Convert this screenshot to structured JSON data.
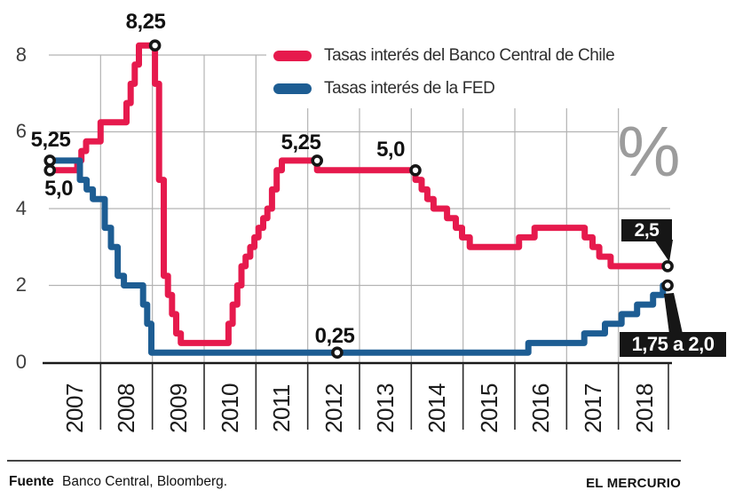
{
  "chart_data": {
    "type": "line",
    "step": true,
    "unit_symbol": "%",
    "x_range": [
      2007,
      2019
    ],
    "y_range": [
      0,
      8.6
    ],
    "grid": true,
    "legend_position": "top-center",
    "x_tick_labels": [
      "2007",
      "2008",
      "2009",
      "2010",
      "2011",
      "2012",
      "2013",
      "2014",
      "2015",
      "2016",
      "2017",
      "2018"
    ],
    "y_ticks": [
      0,
      2,
      4,
      6,
      8
    ],
    "y_tick_labels": [
      "8",
      "6",
      "4",
      "2",
      "0"
    ],
    "colors": {
      "chile": "#e61a4d",
      "fed": "#1d5d93",
      "badge_bg": "#161616",
      "grid": "#b3b3b3",
      "axis": "#1a1a1a",
      "percent": "#9c9c9c"
    },
    "series": [
      {
        "name": "Tasas interés del Banco Central de Chile",
        "color": "#e61a4d",
        "end_x": 2018.97,
        "points": [
          [
            2007.0,
            5.0
          ],
          [
            2007.55,
            5.25
          ],
          [
            2007.63,
            5.5
          ],
          [
            2007.72,
            5.75
          ],
          [
            2008.0,
            6.25
          ],
          [
            2008.5,
            6.75
          ],
          [
            2008.58,
            7.25
          ],
          [
            2008.66,
            7.75
          ],
          [
            2008.74,
            8.25
          ],
          [
            2009.05,
            7.25
          ],
          [
            2009.13,
            4.75
          ],
          [
            2009.22,
            2.25
          ],
          [
            2009.3,
            1.75
          ],
          [
            2009.38,
            1.25
          ],
          [
            2009.46,
            0.75
          ],
          [
            2009.55,
            0.5
          ],
          [
            2010.47,
            1.0
          ],
          [
            2010.55,
            1.5
          ],
          [
            2010.64,
            2.0
          ],
          [
            2010.72,
            2.5
          ],
          [
            2010.8,
            2.75
          ],
          [
            2010.89,
            3.0
          ],
          [
            2010.97,
            3.25
          ],
          [
            2011.05,
            3.5
          ],
          [
            2011.14,
            3.75
          ],
          [
            2011.22,
            4.0
          ],
          [
            2011.31,
            4.5
          ],
          [
            2011.4,
            5.0
          ],
          [
            2011.5,
            5.25
          ],
          [
            2012.18,
            5.0
          ],
          [
            2014.08,
            4.75
          ],
          [
            2014.2,
            4.5
          ],
          [
            2014.31,
            4.25
          ],
          [
            2014.43,
            4.0
          ],
          [
            2014.69,
            3.75
          ],
          [
            2014.86,
            3.5
          ],
          [
            2014.98,
            3.25
          ],
          [
            2015.13,
            3.0
          ],
          [
            2016.08,
            3.25
          ],
          [
            2016.38,
            3.5
          ],
          [
            2017.35,
            3.25
          ],
          [
            2017.5,
            3.0
          ],
          [
            2017.63,
            2.75
          ],
          [
            2017.85,
            2.5
          ]
        ]
      },
      {
        "name": "Tasas interés de la FED",
        "color": "#1d5d93",
        "end_x": 2018.97,
        "points": [
          [
            2007.0,
            5.25
          ],
          [
            2007.6,
            4.75
          ],
          [
            2007.73,
            4.5
          ],
          [
            2007.85,
            4.25
          ],
          [
            2008.08,
            3.5
          ],
          [
            2008.2,
            3.0
          ],
          [
            2008.33,
            2.25
          ],
          [
            2008.45,
            2.0
          ],
          [
            2008.82,
            1.5
          ],
          [
            2008.9,
            1.0
          ],
          [
            2008.98,
            0.25
          ],
          [
            2016.26,
            0.5
          ],
          [
            2017.34,
            0.75
          ],
          [
            2017.74,
            1.0
          ],
          [
            2018.06,
            1.25
          ],
          [
            2018.36,
            1.5
          ],
          [
            2018.67,
            1.75
          ],
          [
            2018.86,
            2.0
          ]
        ]
      }
    ],
    "markers": [
      {
        "x": 2007.02,
        "y": 5.25,
        "series": "fed"
      },
      {
        "x": 2007.02,
        "y": 5.0,
        "series": "chile"
      },
      {
        "x": 2009.05,
        "y": 8.25,
        "series": "chile"
      },
      {
        "x": 2012.18,
        "y": 5.25,
        "series": "chile"
      },
      {
        "x": 2014.08,
        "y": 5.0,
        "series": "chile"
      },
      {
        "x": 2012.57,
        "y": 0.25,
        "series": "fed"
      },
      {
        "x": 2018.95,
        "y": 2.5,
        "series": "chile"
      },
      {
        "x": 2018.95,
        "y": 2.0,
        "series": "fed"
      }
    ],
    "annotations": {
      "fed_start": "5,25",
      "chile_start": "5,0",
      "chile_peak": "8,25",
      "chile_2011_plateau": "5,25",
      "chile_2013_plateau": "5,0",
      "fed_low": "0,25",
      "chile_end_badge": "2,5",
      "fed_end_badge": "1,75 a 2,0",
      "percent_symbol": "%"
    }
  },
  "footer": {
    "source_label": "Fuente",
    "source_text": "Banco Central, Bloomberg.",
    "credit": "EL MERCURIO"
  }
}
